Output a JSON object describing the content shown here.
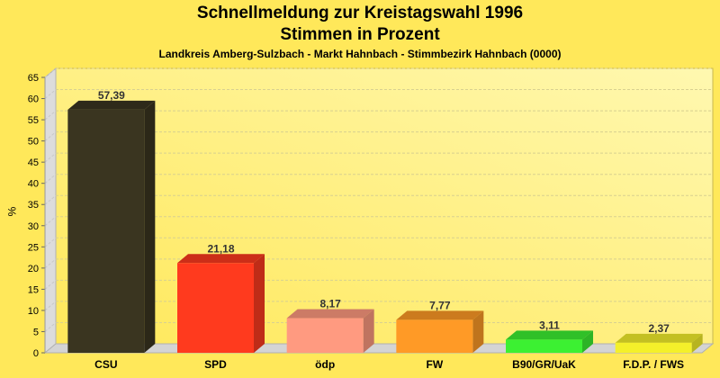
{
  "chart_data": {
    "type": "bar",
    "title": "Schnellmeldung zur Kreistagswahl 1996",
    "subtitle": "Stimmen in Prozent",
    "caption": "Landkreis Amberg-Sulzbach - Markt Hahnbach - Stimmbezirk Hahnbach (0000)",
    "xlabel": "",
    "ylabel": "%",
    "ylim": [
      0,
      65
    ],
    "yticks": [
      0,
      5,
      10,
      15,
      20,
      25,
      30,
      35,
      40,
      45,
      50,
      55,
      60,
      65
    ],
    "grid": true,
    "categories": [
      "CSU",
      "SPD",
      "ödp",
      "FW",
      "B90/GR/UaK",
      "F.D.P. / FWS"
    ],
    "values": [
      57.39,
      21.18,
      8.17,
      7.77,
      3.11,
      2.37
    ],
    "value_labels": [
      "57,39",
      "21,18",
      "8,17",
      "7,77",
      "3,11",
      "2,37"
    ],
    "colors": [
      "#3A3520",
      "#FF3A1E",
      "#FF9A80",
      "#FF9A26",
      "#3CF032",
      "#F4F02A"
    ]
  }
}
